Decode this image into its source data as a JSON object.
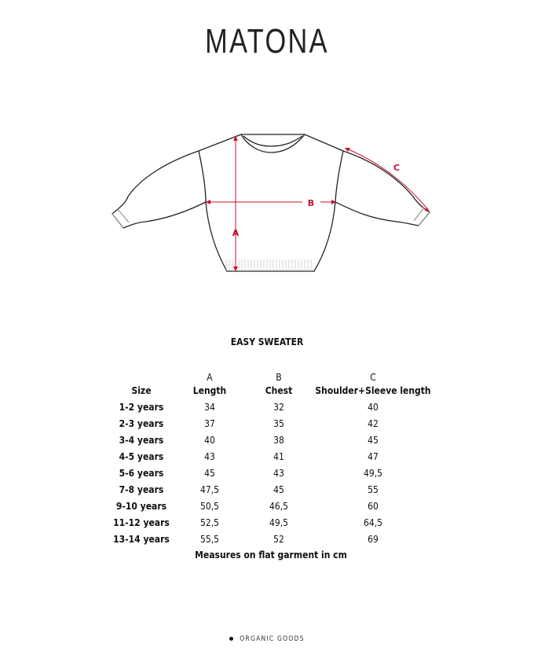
{
  "brand": "MATONA",
  "diagram": {
    "labels": {
      "a": "A",
      "b": "B",
      "c": "C"
    },
    "accent_color": "#c8102e"
  },
  "product_title": "EASY SWEATER",
  "table": {
    "letters": [
      "",
      "A",
      "B",
      "C"
    ],
    "headers": [
      "Size",
      "Length",
      "Chest",
      "Shoulder+Sleeve length"
    ],
    "rows": [
      [
        "1-2 years",
        "34",
        "32",
        "40"
      ],
      [
        "2-3 years",
        "37",
        "35",
        "42"
      ],
      [
        "3-4 years",
        "40",
        "38",
        "45"
      ],
      [
        "4-5 years",
        "43",
        "41",
        "47"
      ],
      [
        "5-6 years",
        "45",
        "43",
        "49,5"
      ],
      [
        "7-8 years",
        "47,5",
        "45",
        "55"
      ],
      [
        "9-10 years",
        "50,5",
        "46,5",
        "60"
      ],
      [
        "11-12 years",
        "52,5",
        "49,5",
        "64,5"
      ],
      [
        "13-14 years",
        "55,5",
        "52",
        "69"
      ]
    ]
  },
  "note": "Measures on flat garment in cm",
  "footer": "ORGANIC GOODS"
}
